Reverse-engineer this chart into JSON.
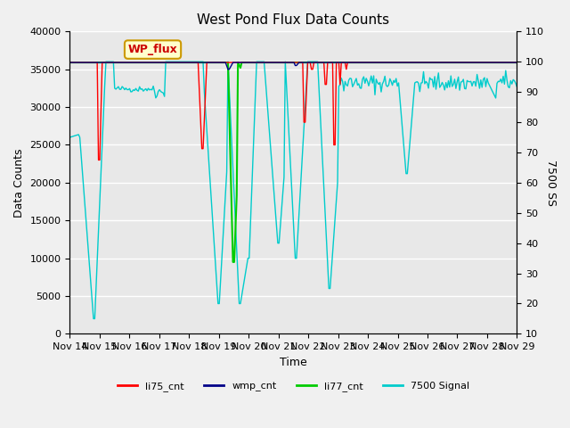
{
  "title": "West Pond Flux Data Counts",
  "xlabel": "Time",
  "ylabel_left": "Data Counts",
  "ylabel_right": "7500 SS",
  "xlim_days": [
    0,
    15
  ],
  "ylim_left": [
    0,
    40000
  ],
  "ylim_right": [
    10,
    110
  ],
  "x_tick_labels": [
    "Nov 14",
    "Nov 15",
    "Nov 16",
    "Nov 17",
    "Nov 18",
    "Nov 19",
    "Nov 20",
    "Nov 21",
    "Nov 22",
    "Nov 23",
    "Nov 24",
    "Nov 25",
    "Nov 26",
    "Nov 27",
    "Nov 28",
    "Nov 29"
  ],
  "bg_color": "#e8e8e8",
  "plot_bg_color": "#e8e8e8",
  "wp_flux_box_color": "#ffffcc",
  "wp_flux_text_color": "#cc0000",
  "wp_flux_border_color": "#cc9900",
  "green_line_value": 35900,
  "green_line_color": "#00cc00",
  "red_color": "#ff0000",
  "blue_color": "#0000cc",
  "cyan_color": "#00cccc",
  "grid_color": "#ffffff"
}
